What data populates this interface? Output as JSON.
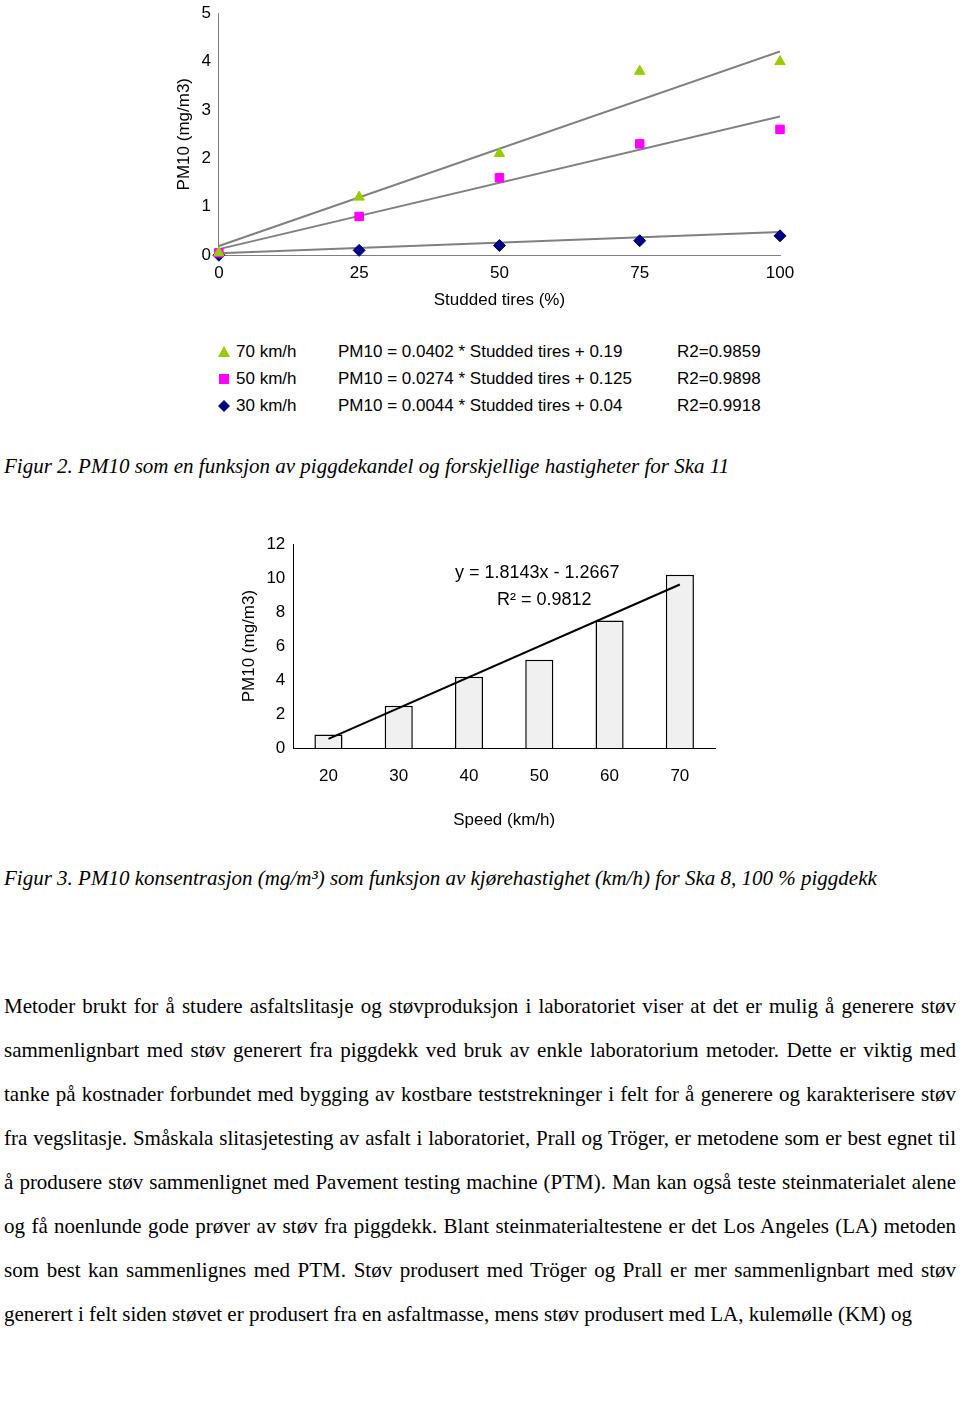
{
  "chart_data": [
    {
      "type": "scatter",
      "x_label": "Studded tires (%)",
      "y_label": "PM10 (mg/m3)",
      "x": [
        0,
        25,
        50,
        75,
        100
      ],
      "xlim": [
        0,
        100
      ],
      "xticks": [
        0,
        25,
        50,
        75,
        100
      ],
      "ylim": [
        0,
        5
      ],
      "yticks": [
        0,
        1,
        2,
        3,
        4,
        5
      ],
      "grid": false,
      "trend_color": "#808080",
      "series": [
        {
          "name": "70 km/h",
          "color": "#99cc00",
          "marker": "triangle",
          "values": [
            0.05,
            1.2,
            2.1,
            3.8,
            4.0
          ],
          "equation": "PM10 = 0.0402 * Studded tires + 0.19",
          "r2": "R2=0.9859",
          "trend": {
            "x": [
              0,
              100
            ],
            "values": [
              0.19,
              4.21
            ]
          }
        },
        {
          "name": "50 km/h",
          "color": "#ff00ff",
          "marker": "square",
          "values": [
            0.05,
            0.8,
            1.6,
            2.3,
            2.6
          ],
          "equation": "PM10 = 0.0274 * Studded tires + 0.125",
          "r2": "R2=0.9898",
          "trend": {
            "x": [
              0,
              100
            ],
            "values": [
              0.125,
              2.865
            ]
          }
        },
        {
          "name": "30 km/h",
          "color": "#000080",
          "marker": "diamond",
          "values": [
            0.0,
            0.1,
            0.2,
            0.3,
            0.4
          ],
          "equation": "PM10 = 0.0044 * Studded tires + 0.04",
          "r2": "R2=0.9918",
          "trend": {
            "x": [
              0,
              100
            ],
            "values": [
              0.04,
              0.48
            ]
          }
        }
      ]
    },
    {
      "type": "bar",
      "x_label": "Speed (km/h)",
      "y_label": "PM10 (mg/m3)",
      "categories": [
        "20",
        "30",
        "40",
        "50",
        "60",
        "70"
      ],
      "values": [
        0.8,
        2.5,
        4.2,
        5.2,
        7.5,
        10.2
      ],
      "color": "#f0f0f0",
      "border_color": "#000000",
      "ylim": [
        0,
        12
      ],
      "yticks": [
        0,
        2,
        4,
        6,
        8,
        10,
        12
      ],
      "grid": false,
      "trend_color": "#000000",
      "trend": {
        "categories": [
          "20",
          "70"
        ],
        "values": [
          0.55,
          9.62
        ]
      },
      "annotations": [
        "y = 1.8143x - 1.2667",
        "R² = 0.9812"
      ]
    }
  ],
  "document": {
    "captions": [
      "Figur 2. PM10 som en funksjon av piggdekandel og forskjellige hastigheter for Ska 11",
      "Figur 3. PM10 konsentrasjon (mg/m³) som funksjon av kjørehastighet (km/h) for Ska 8, 100 % piggdekk"
    ],
    "paragraph": "Metoder brukt for å studere asfaltslitasje og støvproduksjon i laboratoriet viser at det er mulig å generere støv sammenlignbart med støv generert fra piggdekk ved bruk av enkle laboratorium metoder. Dette er viktig med tanke på kostnader forbundet med bygging av kostbare teststrekninger i felt for å generere og karakterisere støv fra vegslitasje. Småskala slitasjetesting av asfalt i laboratoriet, Prall og Tröger, er metodene som er best egnet til å produsere støv sammenlignet med Pavement testing machine (PTM). Man kan også teste steinmaterialet alene og få noenlunde gode prøver av støv fra piggdekk. Blant steinmaterialtestene er det Los Angeles (LA) metoden som best kan sammenlignes med PTM. Støv produsert med Tröger og Prall er mer sammenlignbart med støv generert i felt siden støvet er produsert fra en asfaltmasse, mens støv produsert med LA, kulemølle (KM) og"
  }
}
